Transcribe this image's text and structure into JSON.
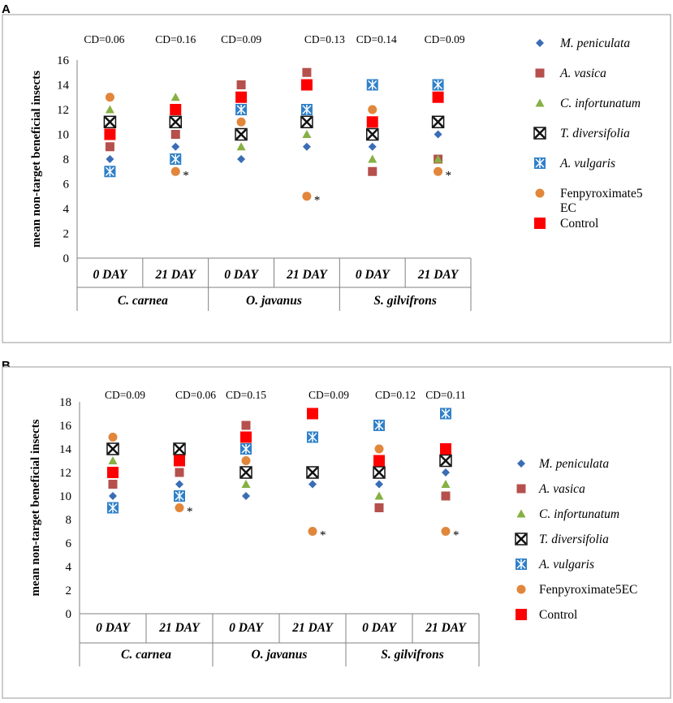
{
  "legend_series": [
    {
      "name": "M. peniculata",
      "italic": true,
      "marker": "diamond",
      "color": "#3a6db5"
    },
    {
      "name": "A. vasica",
      "italic": true,
      "marker": "square",
      "color": "#b5504c"
    },
    {
      "name": "C. infortunatum",
      "italic": true,
      "marker": "triangle",
      "color": "#86b043"
    },
    {
      "name": "T. diversifolia",
      "italic": true,
      "marker": "boxx",
      "color": "#111111"
    },
    {
      "name": "A. vulgaris",
      "italic": true,
      "marker": "boxstar",
      "color": "#2f80c8"
    },
    {
      "name": "Fenpyroximate5 EC",
      "italic": false,
      "marker": "circle",
      "color": "#e1863a"
    },
    {
      "name": "Control",
      "italic": false,
      "marker": "bigsquare",
      "color": "#ff0000"
    }
  ],
  "panels": [
    {
      "letter": "A",
      "chart_data": {
        "type": "scatter",
        "title": "",
        "xlabel": "",
        "ylabel": "mean non-target beneficial insects",
        "ylim": [
          0,
          16
        ],
        "yticks": [
          "0",
          "2",
          "4",
          "6",
          "8",
          "10",
          "12",
          "14",
          "16"
        ],
        "groups": [
          "C. carnea",
          "O. javanus",
          "S. gilvifrons"
        ],
        "categories": [
          "0 DAY",
          "21 DAY",
          "0 DAY",
          "21 DAY",
          "0 DAY",
          "21 DAY"
        ],
        "cd_labels": [
          "CD=0.06",
          "CD=0.16",
          "CD=0.09",
          "CD=0.13",
          "CD=0.14",
          "CD=0.09"
        ],
        "series": [
          {
            "name": "M. peniculata",
            "values": [
              8,
              9,
              8,
              9,
              9,
              10
            ]
          },
          {
            "name": "A. vasica",
            "values": [
              9,
              10,
              14,
              15,
              7,
              8
            ]
          },
          {
            "name": "C. infortunatum",
            "values": [
              12,
              13,
              9,
              10,
              8,
              8
            ]
          },
          {
            "name": "T. diversifolia",
            "values": [
              11,
              11,
              10,
              11,
              10,
              11
            ]
          },
          {
            "name": "A. vulgaris",
            "values": [
              7,
              8,
              12,
              12,
              14,
              14
            ]
          },
          {
            "name": "Fenpyroximate5 EC",
            "values": [
              13,
              7,
              11,
              5,
              12,
              7
            ]
          },
          {
            "name": "Control",
            "values": [
              10,
              12,
              13,
              14,
              11,
              13
            ]
          }
        ],
        "significance_markers": [
          {
            "category_index": 1,
            "series": "Fenpyroximate5 EC",
            "label": "*"
          },
          {
            "category_index": 3,
            "series": "Fenpyroximate5 EC",
            "label": "*"
          },
          {
            "category_index": 5,
            "series": "Fenpyroximate5 EC",
            "label": "*"
          }
        ],
        "legend": [
          {
            "name": "M. peniculata",
            "italic": true
          },
          {
            "name": "A. vasica",
            "italic": true
          },
          {
            "name": "C. infortunatum",
            "italic": true
          },
          {
            "name": "T. diversifolia",
            "italic": true
          },
          {
            "name": "A. vulgaris",
            "italic": true
          },
          {
            "name": "Fenpyroximate5",
            "name2": "EC",
            "italic": false
          },
          {
            "name": "Control",
            "italic": false
          }
        ]
      }
    },
    {
      "letter": "B",
      "chart_data": {
        "type": "scatter",
        "title": "",
        "xlabel": "",
        "ylabel": "mean non-target beneficial insects",
        "ylim": [
          0,
          18
        ],
        "yticks": [
          "0",
          "2",
          "4",
          "6",
          "8",
          "10",
          "12",
          "14",
          "16",
          "18"
        ],
        "groups": [
          "C. carnea",
          "O. javanus",
          "S. gilvifrons"
        ],
        "categories": [
          "0 DAY",
          "21 DAY",
          "0 DAY",
          "21 DAY",
          "0 DAY",
          "21 DAY"
        ],
        "cd_labels": [
          "CD=0.09",
          "CD=0.06",
          "CD=0.15",
          "CD=0.09",
          "CD=0.12",
          "CD=0.11"
        ],
        "series": [
          {
            "name": "M. peniculata",
            "values": [
              10,
              11,
              10,
              11,
              11,
              12
            ]
          },
          {
            "name": "A. vasica",
            "values": [
              11,
              12,
              16,
              15,
              9,
              10
            ]
          },
          {
            "name": "C. infortunatum",
            "values": [
              13,
              13,
              11,
              12,
              10,
              11
            ]
          },
          {
            "name": "T. diversifolia",
            "values": [
              14,
              14,
              12,
              12,
              12,
              13
            ]
          },
          {
            "name": "A. vulgaris",
            "values": [
              9,
              10,
              14,
              15,
              16,
              17
            ]
          },
          {
            "name": "Fenpyroximate5EC",
            "values": [
              15,
              9,
              13,
              7,
              14,
              7
            ]
          },
          {
            "name": "Control",
            "values": [
              12,
              13,
              15,
              17,
              13,
              14
            ]
          }
        ],
        "significance_markers": [
          {
            "category_index": 1,
            "series": "Fenpyroximate5EC",
            "label": "*"
          },
          {
            "category_index": 3,
            "series": "Fenpyroximate5EC",
            "label": "*"
          },
          {
            "category_index": 5,
            "series": "Fenpyroximate5EC",
            "label": "*"
          }
        ],
        "legend": [
          {
            "name": "M. peniculata",
            "italic": true
          },
          {
            "name": "A. vasica",
            "italic": true
          },
          {
            "name": "C. infortunatum",
            "italic": true
          },
          {
            "name": "T. diversifolia",
            "italic": true
          },
          {
            "name": "A. vulgaris",
            "italic": true
          },
          {
            "name": "Fenpyroximate5EC",
            "italic": false
          },
          {
            "name": "Control",
            "italic": false
          }
        ]
      }
    }
  ]
}
